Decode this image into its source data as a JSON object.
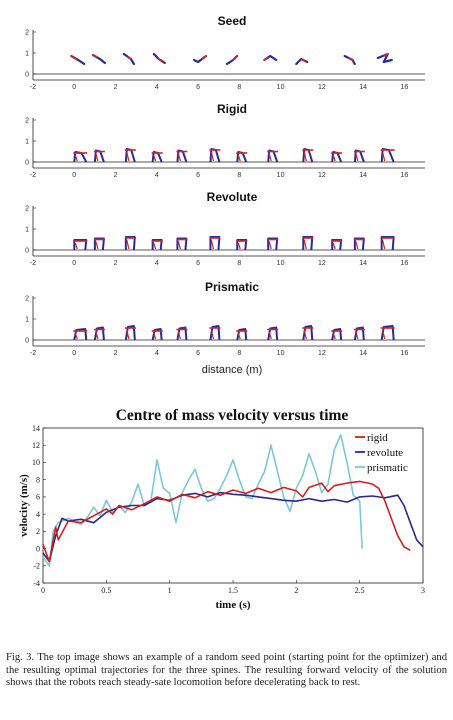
{
  "trajectory_panels": {
    "x_ticks": [
      "-2",
      "0",
      "2",
      "4",
      "6",
      "8",
      "10",
      "12",
      "14",
      "16"
    ],
    "y_ticks": [
      "0",
      "1",
      "2"
    ],
    "xlabel": "distance (m)",
    "colors": {
      "stance": "#d42424",
      "frame": "#2a2a9c"
    },
    "panels": [
      {
        "title": "Seed",
        "variant": "seed"
      },
      {
        "title": "Rigid",
        "variant": "rigid"
      },
      {
        "title": "Revolute",
        "variant": "revolute"
      },
      {
        "title": "Prismatic",
        "variant": "prismatic"
      }
    ]
  },
  "chart_data": {
    "type": "line",
    "title": "Centre of mass velocity versus time",
    "xlabel": "time (s)",
    "ylabel": "velocity (m/s)",
    "xlim": [
      0,
      3
    ],
    "ylim": [
      -4,
      14
    ],
    "x_ticks": [
      "0",
      "0.5",
      "1",
      "1.5",
      "2",
      "2.5",
      "3"
    ],
    "y_ticks": [
      "-4",
      "-2",
      "0",
      "2",
      "4",
      "6",
      "8",
      "10",
      "12",
      "14"
    ],
    "legend_position": "top-right",
    "series": [
      {
        "name": "rigid",
        "color": "#d42020",
        "points": [
          [
            0,
            0.5
          ],
          [
            0.05,
            -1.5
          ],
          [
            0.1,
            2.5
          ],
          [
            0.12,
            1.0
          ],
          [
            0.2,
            3.2
          ],
          [
            0.3,
            3.0
          ],
          [
            0.4,
            3.8
          ],
          [
            0.5,
            4.6
          ],
          [
            0.55,
            4.0
          ],
          [
            0.6,
            5.0
          ],
          [
            0.7,
            4.5
          ],
          [
            0.8,
            5.2
          ],
          [
            0.9,
            6.0
          ],
          [
            1.0,
            5.5
          ],
          [
            1.1,
            6.3
          ],
          [
            1.2,
            5.9
          ],
          [
            1.3,
            6.6
          ],
          [
            1.4,
            6.2
          ],
          [
            1.5,
            6.8
          ],
          [
            1.6,
            6.4
          ],
          [
            1.7,
            7.0
          ],
          [
            1.8,
            6.5
          ],
          [
            1.9,
            7.1
          ],
          [
            2.0,
            6.7
          ],
          [
            2.05,
            6.0
          ],
          [
            2.1,
            7.1
          ],
          [
            2.2,
            7.6
          ],
          [
            2.25,
            6.6
          ],
          [
            2.3,
            7.3
          ],
          [
            2.4,
            7.6
          ],
          [
            2.5,
            7.8
          ],
          [
            2.6,
            7.5
          ],
          [
            2.65,
            7.0
          ],
          [
            2.7,
            5.5
          ],
          [
            2.75,
            3.5
          ],
          [
            2.8,
            1.5
          ],
          [
            2.85,
            0.2
          ],
          [
            2.9,
            -0.2
          ]
        ]
      },
      {
        "name": "revolute",
        "color": "#2a2a8c",
        "points": [
          [
            0,
            -0.5
          ],
          [
            0.05,
            -1.5
          ],
          [
            0.1,
            1.5
          ],
          [
            0.15,
            3.5
          ],
          [
            0.2,
            3.2
          ],
          [
            0.3,
            3.4
          ],
          [
            0.4,
            3.0
          ],
          [
            0.5,
            4.2
          ],
          [
            0.6,
            4.8
          ],
          [
            0.7,
            5.0
          ],
          [
            0.8,
            5.0
          ],
          [
            0.9,
            5.8
          ],
          [
            1.0,
            5.6
          ],
          [
            1.1,
            6.2
          ],
          [
            1.2,
            6.4
          ],
          [
            1.3,
            6.0
          ],
          [
            1.4,
            6.5
          ],
          [
            1.5,
            6.3
          ],
          [
            1.6,
            6.2
          ],
          [
            1.7,
            6.0
          ],
          [
            1.8,
            5.8
          ],
          [
            1.9,
            5.6
          ],
          [
            2.0,
            5.5
          ],
          [
            2.1,
            5.8
          ],
          [
            2.2,
            5.5
          ],
          [
            2.3,
            5.7
          ],
          [
            2.4,
            5.4
          ],
          [
            2.5,
            6.0
          ],
          [
            2.6,
            6.1
          ],
          [
            2.7,
            5.9
          ],
          [
            2.8,
            6.2
          ],
          [
            2.85,
            5.0
          ],
          [
            2.9,
            3.0
          ],
          [
            2.95,
            1.0
          ],
          [
            3.0,
            0.2
          ]
        ]
      },
      {
        "name": "prismatic",
        "color": "#7cc8d8",
        "points": [
          [
            0,
            -1.0
          ],
          [
            0.05,
            -2.0
          ],
          [
            0.08,
            2.0
          ],
          [
            0.12,
            3.0
          ],
          [
            0.2,
            3.5
          ],
          [
            0.3,
            2.8
          ],
          [
            0.35,
            3.6
          ],
          [
            0.4,
            4.8
          ],
          [
            0.45,
            3.8
          ],
          [
            0.5,
            5.6
          ],
          [
            0.55,
            4.2
          ],
          [
            0.6,
            5.0
          ],
          [
            0.65,
            4.2
          ],
          [
            0.7,
            5.4
          ],
          [
            0.75,
            7.5
          ],
          [
            0.8,
            5.0
          ],
          [
            0.85,
            5.4
          ],
          [
            0.9,
            10.3
          ],
          [
            0.95,
            7.0
          ],
          [
            1.0,
            6.4
          ],
          [
            1.05,
            3.0
          ],
          [
            1.1,
            6.5
          ],
          [
            1.15,
            8.0
          ],
          [
            1.2,
            9.2
          ],
          [
            1.25,
            7.0
          ],
          [
            1.3,
            5.5
          ],
          [
            1.35,
            5.8
          ],
          [
            1.4,
            7.0
          ],
          [
            1.45,
            8.5
          ],
          [
            1.5,
            10.3
          ],
          [
            1.55,
            8.0
          ],
          [
            1.6,
            6.0
          ],
          [
            1.65,
            5.8
          ],
          [
            1.7,
            7.5
          ],
          [
            1.75,
            9.0
          ],
          [
            1.8,
            12.0
          ],
          [
            1.85,
            9.0
          ],
          [
            1.9,
            6.0
          ],
          [
            1.95,
            4.3
          ],
          [
            2.0,
            7.0
          ],
          [
            2.05,
            8.5
          ],
          [
            2.1,
            11.0
          ],
          [
            2.15,
            9.0
          ],
          [
            2.2,
            6.5
          ],
          [
            2.25,
            7.5
          ],
          [
            2.3,
            11.5
          ],
          [
            2.35,
            13.2
          ],
          [
            2.4,
            10.0
          ],
          [
            2.45,
            6.2
          ],
          [
            2.5,
            5.5
          ],
          [
            2.52,
            0
          ]
        ]
      }
    ]
  },
  "caption": "Fig. 3.   The top image shows an example of a random seed point (starting point for the optimizer) and the resulting optimal trajectories for the three spines. The resulting forward velocity of the solution shows that the robots reach steady-sate locomotion before decelerating back to rest."
}
